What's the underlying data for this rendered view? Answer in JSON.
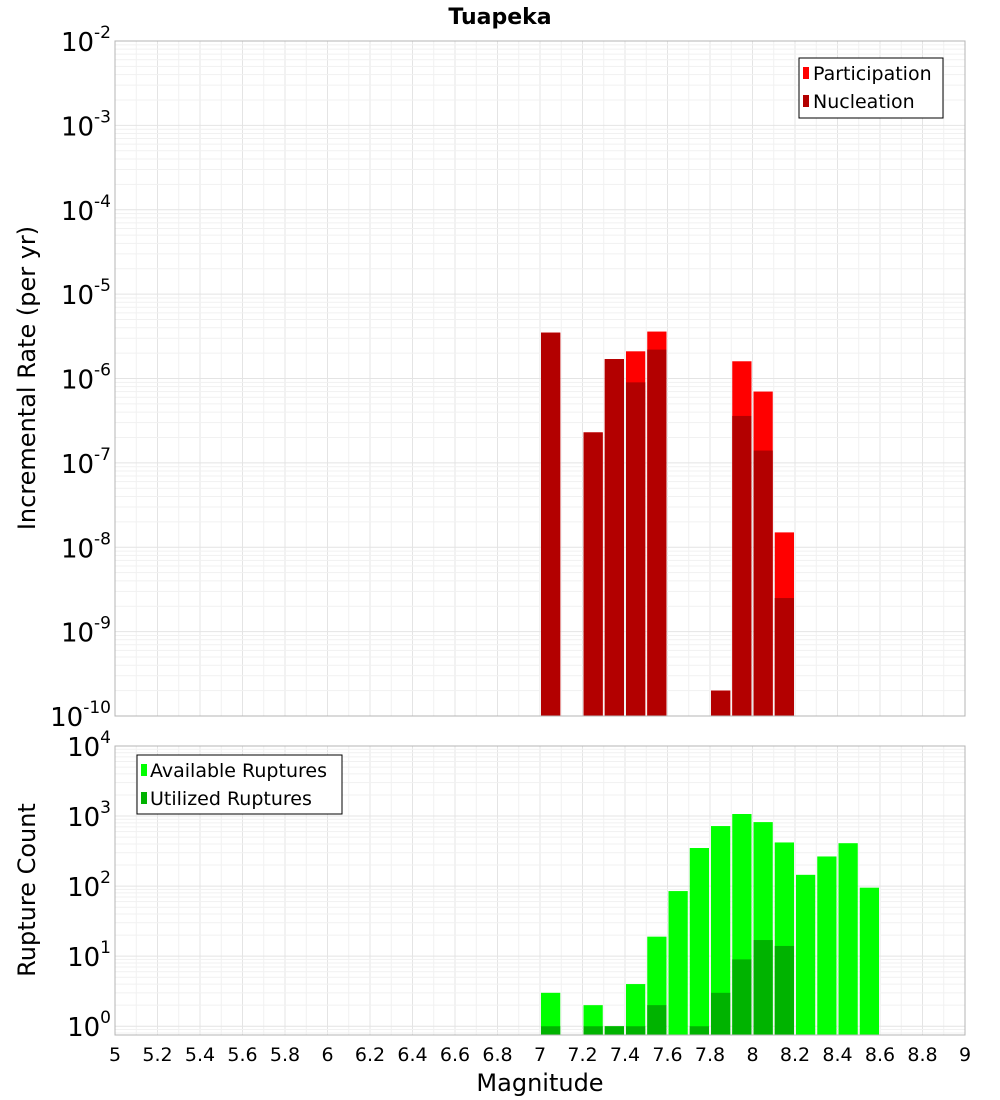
{
  "chart_data": [
    {
      "type": "bar",
      "title": "Tuapeka",
      "xlabel": "",
      "ylabel": "Incremental Rate (per yr)",
      "xlim": [
        5,
        9
      ],
      "ylim": [
        1e-10,
        0.01
      ],
      "yscale": "log",
      "y_tick_exponents": [
        -10,
        -9,
        -8,
        -7,
        -6,
        -5,
        -4,
        -3,
        -2
      ],
      "bar_width": 0.1,
      "grid": true,
      "legend_position": "top-right",
      "series": [
        {
          "name": "Participation",
          "color": "#ff0000",
          "x": [
            7.05,
            7.25,
            7.35,
            7.45,
            7.55,
            7.85,
            7.95,
            8.05,
            8.15
          ],
          "values": [
            3.5e-06,
            2.3e-07,
            1.7e-06,
            2.1e-06,
            3.6e-06,
            2e-10,
            1.6e-06,
            7e-07,
            1.5e-08
          ]
        },
        {
          "name": "Nucleation",
          "color": "#b30000",
          "x": [
            7.05,
            7.25,
            7.35,
            7.45,
            7.55,
            7.85,
            7.95,
            8.05,
            8.15
          ],
          "values": [
            3.5e-06,
            2.3e-07,
            1.7e-06,
            9e-07,
            2.2e-06,
            2e-10,
            3.6e-07,
            1.4e-07,
            2.5e-09
          ]
        }
      ]
    },
    {
      "type": "bar",
      "title": "",
      "xlabel": "Magnitude",
      "ylabel": "Rupture Count",
      "xlim": [
        5,
        9
      ],
      "ylim": [
        0.75,
        10000.0
      ],
      "yscale": "log",
      "y_tick_exponents": [
        0,
        1,
        2,
        3,
        4
      ],
      "x_ticks": [
        "5",
        "5.2",
        "5.4",
        "5.6",
        "5.8",
        "6",
        "6.2",
        "6.4",
        "6.6",
        "6.8",
        "7",
        "7.2",
        "7.4",
        "7.6",
        "7.8",
        "8",
        "8.2",
        "8.4",
        "8.6",
        "8.8",
        "9"
      ],
      "bar_width": 0.1,
      "grid": true,
      "legend_position": "top-left",
      "series": [
        {
          "name": "Available Ruptures",
          "color": "#00ff00",
          "x": [
            7.05,
            7.25,
            7.35,
            7.45,
            7.55,
            7.65,
            7.75,
            7.85,
            7.95,
            8.05,
            8.15,
            8.25,
            8.35,
            8.45,
            8.55
          ],
          "values": [
            3,
            2,
            1,
            4,
            19,
            85,
            350,
            720,
            1070,
            820,
            420,
            145,
            265,
            410,
            95
          ]
        },
        {
          "name": "Utilized Ruptures",
          "color": "#00b300",
          "x": [
            7.05,
            7.25,
            7.35,
            7.45,
            7.55,
            7.65,
            7.75,
            7.85,
            7.95,
            8.05,
            8.15,
            8.25,
            8.35,
            8.45,
            8.55
          ],
          "values": [
            1,
            1,
            1,
            1,
            2,
            0,
            1,
            3,
            9,
            17,
            14,
            0,
            0,
            0,
            0
          ]
        }
      ]
    }
  ]
}
